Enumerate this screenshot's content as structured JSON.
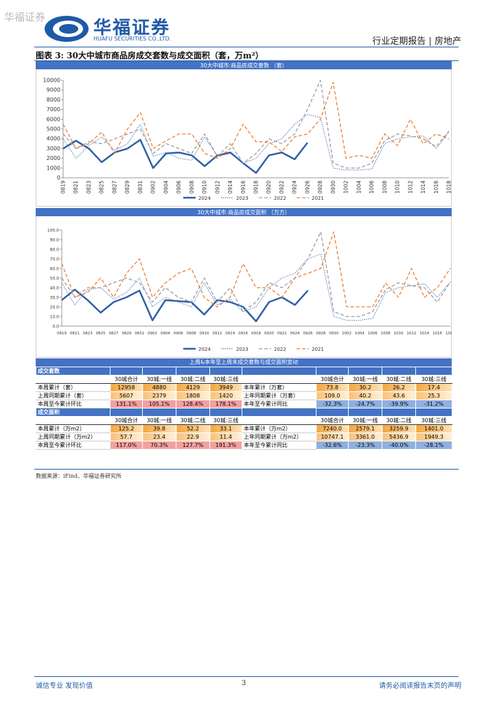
{
  "header": {
    "watermark": "华福证券",
    "logo_cn": "华福证券",
    "logo_en": "HUAFU SECURITIES CO.,LTD.",
    "report_info": "行业定期报告 | 房地产"
  },
  "figure": {
    "title": "图表 3:  30大中城市商品房成交套数与成交面积（套，万m²）",
    "charts": [
      {
        "type": "line",
        "title": "30大中城市:商品房成交套数 （套）",
        "x": [
          "0819",
          "0821",
          "0823",
          "0825",
          "0827",
          "0829",
          "0831",
          "0902",
          "0904",
          "0906",
          "0908",
          "0910",
          "0912",
          "0914",
          "0916",
          "0918",
          "0920",
          "0922",
          "0924",
          "0926",
          "0928",
          "0930",
          "1002",
          "1004",
          "1006",
          "1008",
          "1010",
          "1012",
          "1014",
          "1016",
          "1018"
        ],
        "series": [
          {
            "name": "2024",
            "color": "#2e5fa8",
            "line_style": "solid",
            "values": [
              3000,
              3800,
              3000,
              1600,
              2600,
              3000,
              3900,
              1000,
              2500,
              2600,
              2300,
              1200,
              2300,
              2600,
              1500,
              500,
              2300,
              2600,
              1900,
              3600,
              null,
              null,
              null,
              null,
              null,
              null,
              null,
              null,
              null,
              null,
              null
            ]
          },
          {
            "name": "2023",
            "color": "#4a78c2",
            "line_style": "dotted",
            "values": [
              4000,
              2000,
              3300,
              4200,
              2800,
              3500,
              5500,
              2200,
              2600,
              2000,
              1800,
              4200,
              2200,
              2500,
              1500,
              2000,
              3500,
              4000,
              5500,
              6500,
              6200,
              1000,
              800,
              800,
              900,
              3500,
              4000,
              4200,
              4300,
              3000,
              4700
            ]
          },
          {
            "name": "2022",
            "color": "#9a9a9a",
            "line_style": "dashed",
            "values": [
              4500,
              3000,
              3700,
              3500,
              4000,
              4500,
              5000,
              2500,
              3500,
              3000,
              2500,
              4500,
              2200,
              3500,
              1500,
              2500,
              4000,
              3500,
              4500,
              7000,
              10000,
              1500,
              1000,
              1000,
              1500,
              3800,
              4500,
              4300,
              4000,
              3200,
              4800
            ]
          },
          {
            "name": "2021",
            "color": "#ed7d31",
            "line_style": "dashed",
            "values": [
              5500,
              3000,
              3500,
              4700,
              2500,
              5000,
              6700,
              3000,
              3800,
              4500,
              4500,
              2500,
              2000,
              3000,
              5500,
              3700,
              3700,
              2700,
              4200,
              4500,
              6000,
              9800,
              2000,
              2300,
              2000,
              4500,
              3300,
              6000,
              3500,
              4500,
              4000
            ]
          }
        ],
        "ylim": [
          0,
          10000
        ],
        "yticks": [
          0,
          1000,
          2000,
          3000,
          4000,
          5000,
          6000,
          7000,
          8000,
          9000,
          10000
        ],
        "grid": false
      },
      {
        "type": "line",
        "title": "30大中城市:商品房成交面积 （万方）",
        "x": [
          "0819",
          "0821",
          "0823",
          "0825",
          "0827",
          "0829",
          "0831",
          "0902",
          "0904",
          "0906",
          "0908",
          "0910",
          "0912",
          "0914",
          "0916",
          "0918",
          "0920",
          "0922",
          "0924",
          "0926",
          "0928",
          "0930",
          "1002",
          "1004",
          "1006",
          "1008",
          "1010",
          "1012",
          "1014",
          "1016",
          "1018"
        ],
        "series": [
          {
            "name": "2024",
            "color": "#2e5fa8",
            "line_style": "solid",
            "values": [
              27,
              38,
              27,
              14,
              25,
              30,
              37,
              6,
              27,
              26,
              25,
              12,
              27,
              25,
              20,
              5,
              25,
              30,
              22,
              37,
              null,
              null,
              null,
              null,
              null,
              null,
              null,
              null,
              null,
              null,
              null
            ]
          },
          {
            "name": "2023",
            "color": "#4a78c2",
            "line_style": "dotted",
            "values": [
              45,
              22,
              38,
              40,
              28,
              35,
              50,
              20,
              30,
              25,
              20,
              45,
              22,
              28,
              15,
              20,
              40,
              50,
              55,
              70,
              75,
              10,
              6,
              6,
              8,
              35,
              40,
              42,
              44,
              30,
              46
            ]
          },
          {
            "name": "2022",
            "color": "#9a9a9a",
            "line_style": "dashed",
            "values": [
              50,
              30,
              40,
              40,
              45,
              50,
              45,
              25,
              40,
              30,
              25,
              50,
              25,
              40,
              15,
              25,
              45,
              40,
              50,
              70,
              98,
              15,
              10,
              10,
              15,
              38,
              45,
              42,
              40,
              25,
              46
            ]
          },
          {
            "name": "2021",
            "color": "#ed7d31",
            "line_style": "dashed",
            "values": [
              65,
              30,
              35,
              50,
              30,
              55,
              70,
              30,
              45,
              55,
              60,
              30,
              20,
              30,
              65,
              40,
              40,
              30,
              50,
              55,
              60,
              98,
              20,
              20,
              20,
              45,
              30,
              60,
              30,
              40,
              60
            ]
          }
        ],
        "ylim": [
          0,
          100
        ],
        "yticks": [
          {
            "value": 0,
            "label": "0.0"
          },
          {
            "value": 10,
            "label": "10.0"
          },
          {
            "value": 20,
            "label": "20.0"
          },
          {
            "value": 30,
            "label": "30.0"
          },
          {
            "value": 40,
            "label": "40.0"
          },
          {
            "value": 50,
            "label": "50.0"
          },
          {
            "value": 60,
            "label": "60.0"
          },
          {
            "value": 70,
            "label": "70.0"
          },
          {
            "value": 80,
            "label": "80.0"
          },
          {
            "value": 90,
            "label": "90.0"
          },
          {
            "value": 100,
            "label": "100.0"
          }
        ],
        "grid": false
      }
    ]
  },
  "table": {
    "title": "上周&本年至上周末成交套数与成交面积变动",
    "sections": [
      {
        "name": "成交套数",
        "header_left": [
          "30城合计",
          "30城:一线",
          "30城:二线",
          "30城:三线"
        ],
        "header_right": [
          "30城合计",
          "30城:一线",
          "30城:二线",
          "30城:三线"
        ],
        "rows": [
          {
            "label": "本周累计（套）",
            "values": [
              "12958",
              "4880",
              "4129",
              "3949"
            ],
            "label2": "本年累计（万套）",
            "values2": [
              "73.8",
              "30.2",
              "26.2",
              "17.4"
            ]
          },
          {
            "label": "上周同期累计（套）",
            "values": [
              "5607",
              "2379",
              "1808",
              "1420"
            ],
            "label2": "上年同期累计（万套）",
            "values2": [
              "109.0",
              "40.2",
              "43.6",
              "25.3"
            ]
          },
          {
            "label": "本周至今累计环比",
            "values": [
              "131.1%",
              "105.1%",
              "128.4%",
              "178.1%"
            ],
            "label2": "本年至今累计同比",
            "values2": [
              "-32.3%",
              "-24.7%",
              "-39.9%",
              "-31.2%"
            ]
          }
        ]
      },
      {
        "name": "成交面积",
        "header_left": [
          "30城合计",
          "30城:一线",
          "30城:二线",
          "30城:三线"
        ],
        "header_right": [
          "30城合计",
          "30城:一线",
          "30城:二线",
          "30城:三线"
        ],
        "rows": [
          {
            "label": "本周累计（万m2）",
            "values": [
              "125.2",
              "39.8",
              "52.2",
              "33.1"
            ],
            "label2": "本年累计（万m2）",
            "values2": [
              "7240.0",
              "2579.1",
              "3259.9",
              "1401.0"
            ]
          },
          {
            "label": "上周同期累计（万m2）",
            "values": [
              "57.7",
              "23.4",
              "22.9",
              "11.4"
            ],
            "label2": "上年同期累计（万m2）",
            "values2": [
              "10747.1",
              "3361.0",
              "5436.9",
              "1949.3"
            ]
          },
          {
            "label": "本周至今累计环比",
            "values": [
              "117.0%",
              "70.3%",
              "127.7%",
              "191.3%"
            ],
            "label2": "本年至今累计同比",
            "values2": [
              "-32.6%",
              "-23.3%",
              "-40.0%",
              "-28.1%"
            ]
          }
        ]
      }
    ]
  },
  "source": "数据来源：iFind、华福证券研究所",
  "footer": {
    "left": "诚信专业  发现价值",
    "page": "3",
    "right": "请务必阅读报告末页的声明"
  }
}
